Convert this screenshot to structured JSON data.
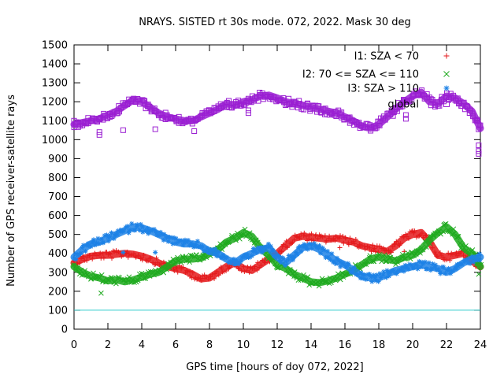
{
  "chart_data": {
    "type": "scatter",
    "title": "NRAYS. SISTED rt 30s mode. 072, 2022. Mask 30 deg",
    "xlabel": "GPS time [hours of doy 072, 2022]",
    "ylabel": "Number of GPS receiver-satellite rays",
    "xlim": [
      0,
      24
    ],
    "ylim": [
      0,
      1500
    ],
    "xticks": [
      0,
      2,
      4,
      6,
      8,
      10,
      12,
      14,
      16,
      18,
      20,
      22,
      24
    ],
    "yticks": [
      0,
      100,
      200,
      300,
      400,
      500,
      600,
      700,
      800,
      900,
      1000,
      1100,
      1200,
      1300,
      1400,
      1500
    ],
    "threshold_line": {
      "y": 100,
      "color": "#33cccc"
    },
    "legend_position": "top-right",
    "series": [
      {
        "name": "I1: SZA < 70",
        "marker": "+",
        "color": "#e41a1c",
        "x": [
          0,
          0.5,
          1,
          1.5,
          2,
          2.5,
          3,
          3.5,
          4,
          4.5,
          5,
          5.5,
          6,
          6.5,
          7,
          7.5,
          8,
          8.5,
          9,
          9.5,
          10,
          10.5,
          11,
          11.5,
          12,
          12.5,
          13,
          13.5,
          14,
          14.5,
          15,
          15.5,
          16,
          16.5,
          17,
          17.5,
          18,
          18.5,
          19,
          19.5,
          20,
          20.5,
          21,
          21.5,
          22,
          22.5,
          23,
          23.5,
          24
        ],
        "values": [
          350,
          370,
          385,
          390,
          390,
          395,
          400,
          395,
          385,
          370,
          350,
          330,
          320,
          310,
          290,
          265,
          270,
          300,
          330,
          350,
          320,
          310,
          340,
          370,
          400,
          440,
          480,
          490,
          485,
          480,
          475,
          480,
          470,
          460,
          440,
          430,
          420,
          410,
          440,
          480,
          500,
          510,
          460,
          390,
          380,
          390,
          400,
          360,
          330
        ],
        "outliers": [
          [
            3.1,
            400
          ],
          [
            15.7,
            430
          ],
          [
            19.5,
            410
          ]
        ]
      },
      {
        "name": "I2: 70 <= SZA <= 110",
        "marker": "x",
        "color": "#1faa1f",
        "x": [
          0,
          0.5,
          1,
          1.5,
          2,
          2.5,
          3,
          3.5,
          4,
          4.5,
          5,
          5.5,
          6,
          6.5,
          7,
          7.5,
          8,
          8.5,
          9,
          9.5,
          10,
          10.5,
          11,
          11.5,
          12,
          12.5,
          13,
          13.5,
          14,
          14.5,
          15,
          15.5,
          16,
          16.5,
          17,
          17.5,
          18,
          18.5,
          19,
          19.5,
          20,
          20.5,
          21,
          21.5,
          22,
          22.5,
          23,
          23.5,
          24
        ],
        "values": [
          330,
          300,
          280,
          270,
          255,
          260,
          250,
          260,
          275,
          290,
          300,
          330,
          360,
          370,
          370,
          375,
          400,
          420,
          460,
          480,
          510,
          490,
          430,
          390,
          340,
          320,
          290,
          270,
          250,
          245,
          255,
          270,
          290,
          310,
          340,
          370,
          380,
          370,
          360,
          380,
          390,
          420,
          470,
          510,
          540,
          500,
          430,
          400,
          330
        ],
        "outliers": [
          [
            1.6,
            190
          ],
          [
            23.9,
            290
          ]
        ]
      },
      {
        "name": "I3: SZA > 110",
        "marker": "*",
        "color": "#1e82e6",
        "x": [
          0,
          0.5,
          1,
          1.5,
          2,
          2.5,
          3,
          3.5,
          4,
          4.5,
          5,
          5.5,
          6,
          6.5,
          7,
          7.5,
          8,
          8.5,
          9,
          9.5,
          10,
          10.5,
          11,
          11.5,
          12,
          12.5,
          13,
          13.5,
          14,
          14.5,
          15,
          15.5,
          16,
          16.5,
          17,
          17.5,
          18,
          18.5,
          19,
          19.5,
          20,
          20.5,
          21,
          21.5,
          22,
          22.5,
          23,
          23.5,
          24
        ],
        "values": [
          380,
          420,
          450,
          460,
          480,
          500,
          520,
          540,
          535,
          520,
          500,
          480,
          460,
          450,
          450,
          440,
          410,
          400,
          370,
          350,
          380,
          400,
          420,
          430,
          380,
          350,
          390,
          430,
          440,
          420,
          390,
          360,
          340,
          310,
          280,
          270,
          270,
          290,
          310,
          320,
          330,
          340,
          330,
          320,
          300,
          320,
          350,
          370,
          380
        ],
        "outliers": [
          [
            2.9,
            405
          ],
          [
            4.8,
            405
          ],
          [
            7.1,
            445
          ]
        ]
      },
      {
        "name": "global",
        "marker": "square",
        "color": "#9a1fd2",
        "x": [
          0,
          0.5,
          1,
          1.5,
          2,
          2.5,
          3,
          3.5,
          4,
          4.5,
          5,
          5.5,
          6,
          6.5,
          7,
          7.5,
          8,
          8.5,
          9,
          9.5,
          10,
          10.5,
          11,
          11.5,
          12,
          12.5,
          13,
          13.5,
          14,
          14.5,
          15,
          15.5,
          16,
          16.5,
          17,
          17.5,
          18,
          18.5,
          19,
          19.5,
          20,
          20.5,
          21,
          21.5,
          22,
          22.5,
          23,
          23.5,
          24
        ],
        "values": [
          1080,
          1090,
          1100,
          1110,
          1130,
          1150,
          1180,
          1210,
          1200,
          1170,
          1140,
          1120,
          1110,
          1100,
          1100,
          1120,
          1140,
          1160,
          1190,
          1180,
          1200,
          1210,
          1230,
          1235,
          1220,
          1200,
          1190,
          1180,
          1170,
          1160,
          1150,
          1140,
          1120,
          1100,
          1070,
          1060,
          1080,
          1120,
          1160,
          1200,
          1230,
          1250,
          1200,
          1190,
          1230,
          1220,
          1190,
          1150,
          1060
        ],
        "outliers": [
          [
            0,
            1100
          ],
          [
            1.5,
            1040
          ],
          [
            1.5,
            1025
          ],
          [
            2.9,
            1050
          ],
          [
            4.8,
            1055
          ],
          [
            7.1,
            1045
          ],
          [
            10.3,
            1140
          ],
          [
            10.3,
            1155
          ],
          [
            19.6,
            1130
          ],
          [
            19.6,
            1110
          ],
          [
            23.9,
            970
          ],
          [
            23.9,
            940
          ],
          [
            23.9,
            925
          ]
        ]
      }
    ]
  }
}
